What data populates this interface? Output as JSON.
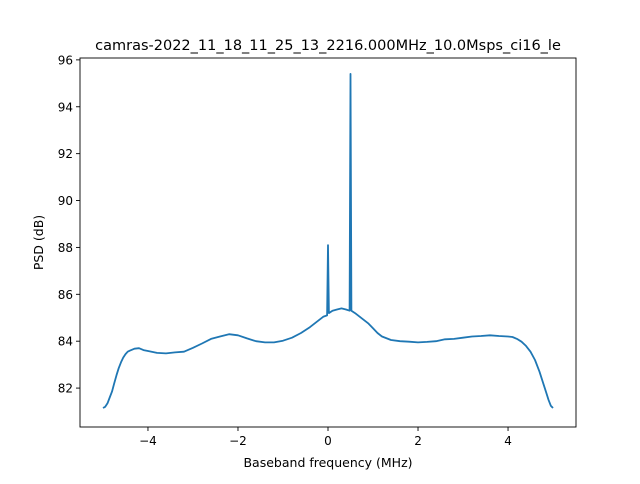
{
  "chart_data": {
    "type": "line",
    "title": "camras-2022_11_18_11_25_13_2216.000MHz_10.0Msps_ci16_le",
    "xlabel": "Baseband frequency (MHz)",
    "ylabel": "PSD (dB)",
    "xlim": [
      -5.51,
      5.51
    ],
    "ylim": [
      80.34,
      96.08
    ],
    "xticks": [
      -4,
      -2,
      0,
      2,
      4
    ],
    "xtick_labels": [
      "−4",
      "−2",
      "0",
      "2",
      "4"
    ],
    "yticks": [
      82,
      84,
      86,
      88,
      90,
      92,
      94,
      96
    ],
    "ytick_labels": [
      "82",
      "84",
      "86",
      "88",
      "90",
      "92",
      "94",
      "96"
    ],
    "grid": false,
    "color": "#1f77b4",
    "series": [
      {
        "name": "PSD",
        "x": [
          -5.0,
          -4.95,
          -4.9,
          -4.85,
          -4.8,
          -4.75,
          -4.7,
          -4.65,
          -4.6,
          -4.55,
          -4.5,
          -4.45,
          -4.4,
          -4.3,
          -4.2,
          -4.1,
          -4.0,
          -3.8,
          -3.6,
          -3.4,
          -3.2,
          -3.0,
          -2.8,
          -2.6,
          -2.4,
          -2.2,
          -2.0,
          -1.8,
          -1.6,
          -1.4,
          -1.2,
          -1.0,
          -0.8,
          -0.6,
          -0.4,
          -0.3,
          -0.2,
          -0.1,
          -0.02,
          0.0,
          0.02,
          0.1,
          0.2,
          0.3,
          0.4,
          0.48,
          0.5,
          0.52,
          0.6,
          0.7,
          0.8,
          0.9,
          1.0,
          1.1,
          1.2,
          1.4,
          1.6,
          1.8,
          2.0,
          2.2,
          2.4,
          2.6,
          2.8,
          3.0,
          3.2,
          3.4,
          3.6,
          3.8,
          4.0,
          4.1,
          4.2,
          4.3,
          4.4,
          4.5,
          4.6,
          4.7,
          4.8,
          4.85,
          4.9,
          4.95,
          5.0
        ],
        "y": [
          81.15,
          81.2,
          81.35,
          81.6,
          81.85,
          82.2,
          82.55,
          82.85,
          83.1,
          83.3,
          83.45,
          83.55,
          83.6,
          83.68,
          83.7,
          83.62,
          83.58,
          83.5,
          83.48,
          83.52,
          83.55,
          83.72,
          83.9,
          84.1,
          84.2,
          84.3,
          84.25,
          84.12,
          84.0,
          83.95,
          83.95,
          84.02,
          84.15,
          84.35,
          84.6,
          84.75,
          84.9,
          85.05,
          85.1,
          88.1,
          85.2,
          85.3,
          85.35,
          85.4,
          85.35,
          85.3,
          95.4,
          85.3,
          85.2,
          85.05,
          84.9,
          84.75,
          84.55,
          84.35,
          84.2,
          84.05,
          84.0,
          83.98,
          83.95,
          83.97,
          84.0,
          84.08,
          84.1,
          84.15,
          84.2,
          84.22,
          84.25,
          84.22,
          84.2,
          84.18,
          84.1,
          83.98,
          83.8,
          83.55,
          83.2,
          82.7,
          82.1,
          81.8,
          81.5,
          81.25,
          81.15
        ]
      }
    ]
  }
}
